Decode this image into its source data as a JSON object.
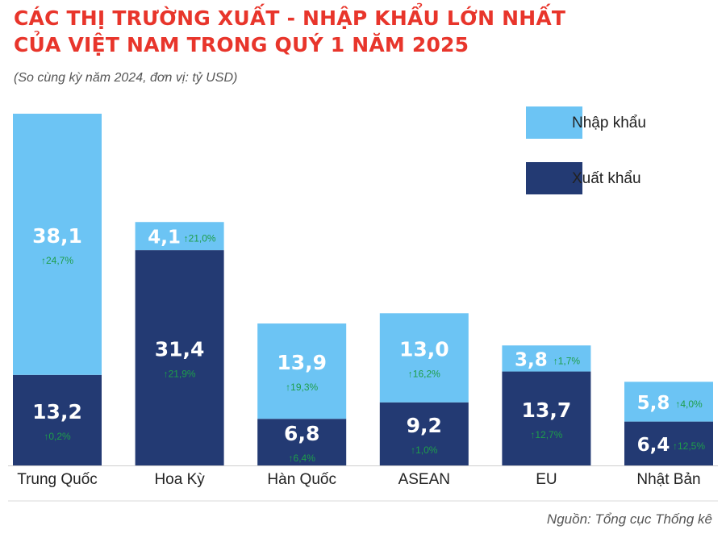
{
  "header": {
    "title_line1": "CÁC THỊ TRƯỜNG XUẤT - NHẬP KHẨU LỚN NHẤT",
    "title_line2": "CỦA VIỆT NAM TRONG QUÝ 1 NĂM 2025",
    "subtitle": "(So cùng kỳ năm 2024, đơn vị: tỷ USD)"
  },
  "footer": {
    "source": "Nguồn: Tổng cục Thống kê"
  },
  "colors": {
    "import": "#6cc4f4",
    "export": "#233a73",
    "growth": "#1e9e4a",
    "title": "#e8352b"
  },
  "chart_data": {
    "type": "bar",
    "stacked": true,
    "categories": [
      "Trung Quốc",
      "Hoa Kỳ",
      "Hàn Quốc",
      "ASEAN",
      "EU",
      "Nhật Bản"
    ],
    "series": [
      {
        "name": "Xuất khẩu",
        "values": [
          13.2,
          31.4,
          6.8,
          9.2,
          13.7,
          6.4
        ],
        "labels": [
          "13,2",
          "31,4",
          "6,8",
          "9,2",
          "13,7",
          "6,4"
        ],
        "growth_labels": [
          "↑0,2%",
          "↑21,9%",
          "↑6,4%",
          "↑1,0%",
          "↑12,7%",
          "↑12,5%"
        ]
      },
      {
        "name": "Nhập khẩu",
        "values": [
          38.1,
          4.1,
          13.9,
          13.0,
          3.8,
          5.8
        ],
        "labels": [
          "38,1",
          "4,1",
          "13,9",
          "13,0",
          "3,8",
          "5,8"
        ],
        "growth_labels": [
          "↑24,7%",
          "↑21,0%",
          "↑19,3%",
          "↑16,2%",
          "↑1,7%",
          "↑4,0%"
        ]
      }
    ],
    "legend": {
      "placement": "top-right",
      "items": [
        "Nhập khẩu",
        "Xuất khẩu"
      ]
    },
    "grid": false
  }
}
